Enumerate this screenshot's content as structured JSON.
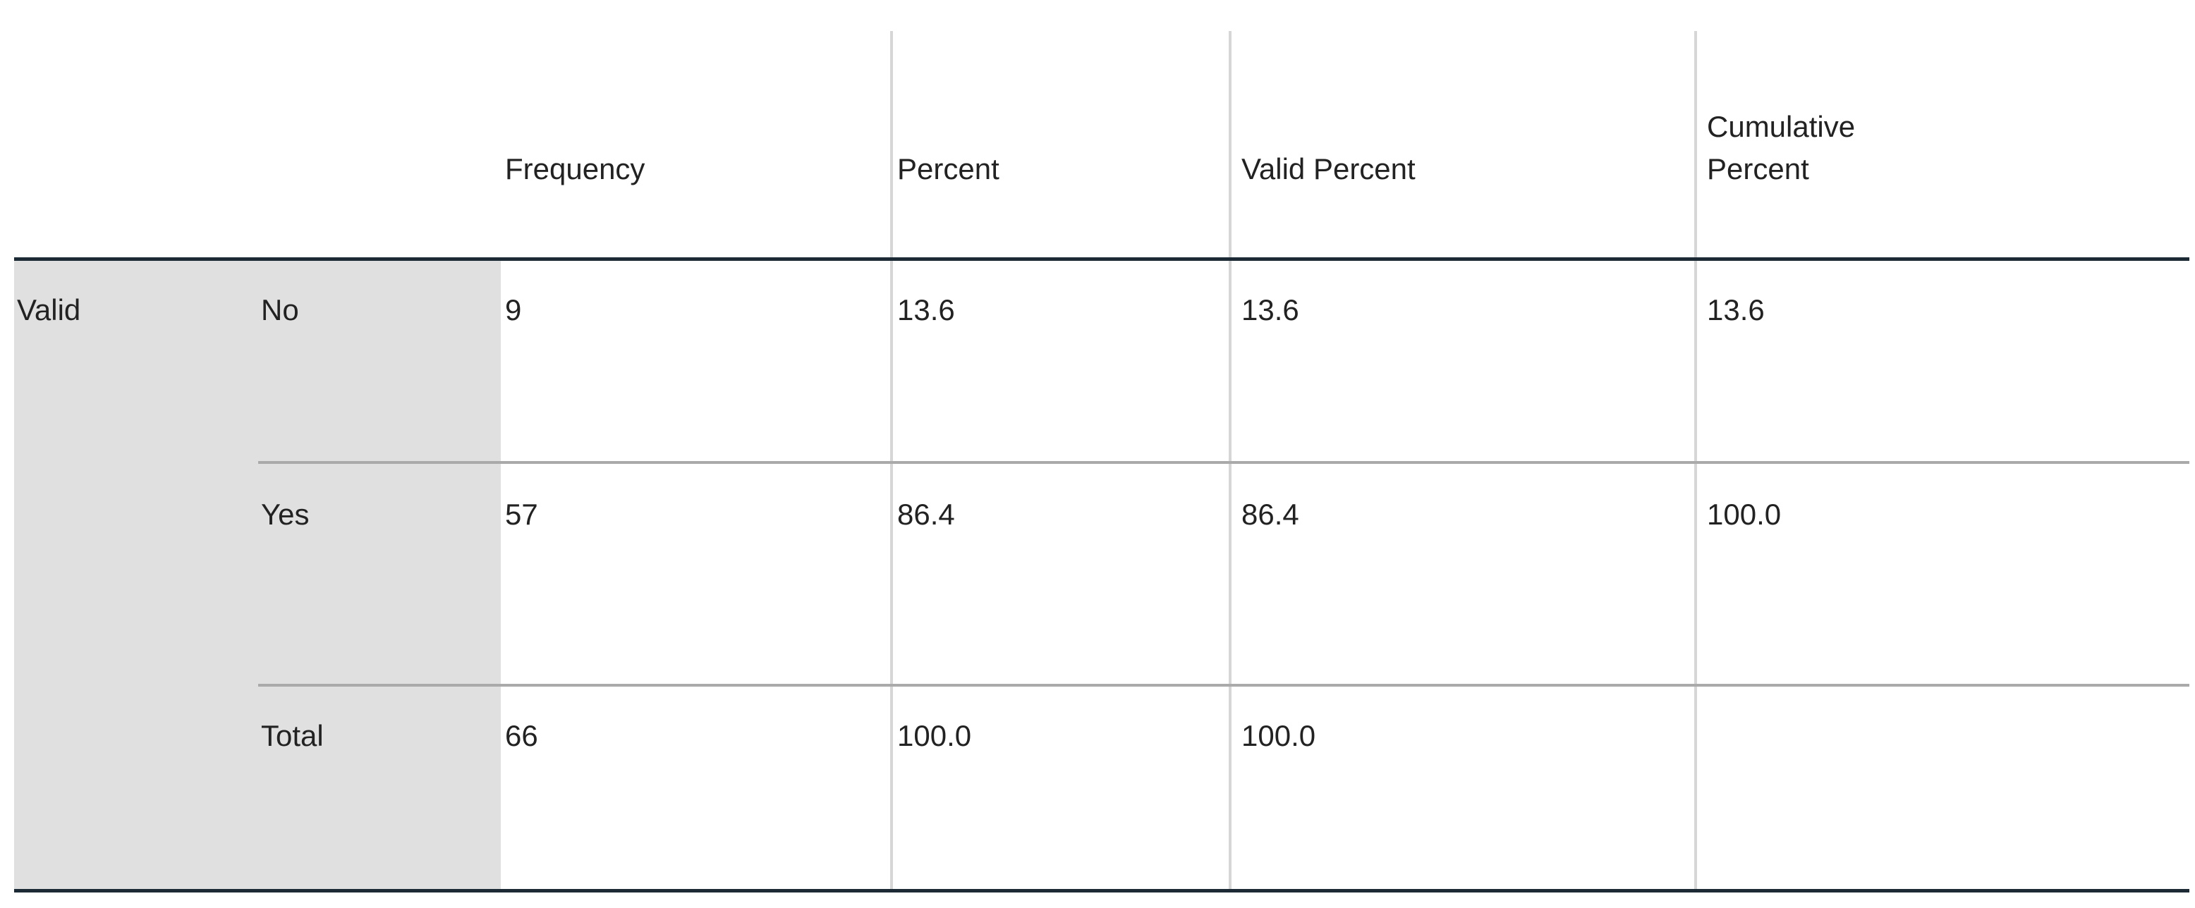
{
  "table": {
    "columns": [
      "Frequency",
      "Percent",
      "Valid Percent",
      "Cumulative Percent"
    ],
    "group": "Valid",
    "rows": [
      {
        "label": "No",
        "values": [
          "9",
          "13.6",
          "13.6",
          "13.6"
        ]
      },
      {
        "label": "Yes",
        "values": [
          "57",
          "86.4",
          "86.4",
          "100.0"
        ]
      },
      {
        "label": "Total",
        "values": [
          "66",
          "100.0",
          "100.0"
        ]
      }
    ]
  }
}
